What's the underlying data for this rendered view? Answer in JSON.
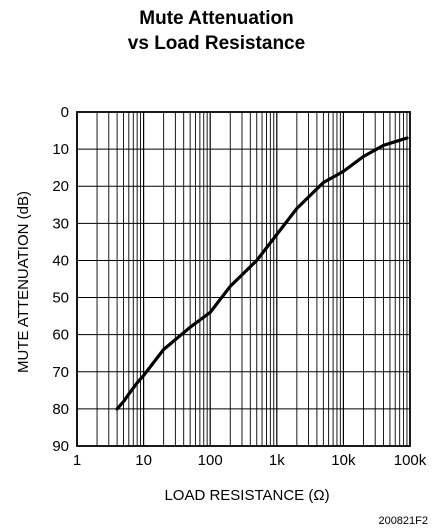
{
  "chart_data": {
    "type": "line",
    "title_line1": "Mute Attenuation",
    "title_line2": "vs Load Resistance",
    "xlabel": "LOAD RESISTANCE (Ω)",
    "ylabel": "MUTE ATTENUATION (dB)",
    "x_scale": "log",
    "xlim": [
      1,
      100000
    ],
    "ylim": [
      0,
      90
    ],
    "y_inverted": true,
    "grid": true,
    "x_tick_values": [
      1,
      10,
      100,
      1000,
      10000,
      100000
    ],
    "x_tick_labels": [
      "1",
      "10",
      "100",
      "1k",
      "10k",
      "100k"
    ],
    "y_ticks": [
      0,
      10,
      20,
      30,
      40,
      50,
      60,
      70,
      80,
      90
    ],
    "series": [
      {
        "x": [
          4,
          5,
          6,
          8,
          10,
          20,
          50,
          100,
          200,
          500,
          1000,
          2000,
          5000,
          10000,
          20000,
          40000,
          60000,
          90000
        ],
        "y": [
          80,
          78,
          76,
          73,
          71,
          64,
          58,
          54,
          47,
          40,
          33,
          26,
          19,
          16,
          12,
          9,
          8,
          7
        ]
      }
    ],
    "figure_id": "200821F2"
  }
}
